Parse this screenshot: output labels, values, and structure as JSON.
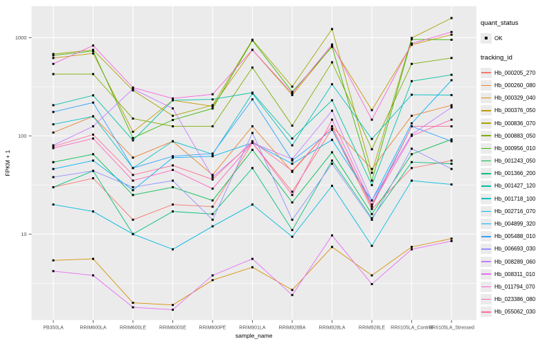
{
  "figure": {
    "background": "#ffffff",
    "panel_bg": "#ebebeb",
    "grid_color": "#ffffff",
    "tick_label_color": "#4d4d4d",
    "axis_title_color": "#000000",
    "point_color": "#000000"
  },
  "chart_data": {
    "type": "line",
    "xlabel": "sample_name",
    "ylabel": "FPKM + 1",
    "y_scale": "log10",
    "y_ticks": [
      10,
      100,
      1000
    ],
    "y_minor_ticks": [
      3.162,
      31.62,
      316.2
    ],
    "ylim": [
      1.35,
      2100
    ],
    "grid": "on",
    "legend_position": "right",
    "point_shape": "solid-square",
    "categories": [
      "PB350LA",
      "RRIM600LA",
      "RRIM600LE",
      "RRIM600SE",
      "RRIM600PE",
      "RRIM901LA",
      "RRIM928BA",
      "RRIM928LA",
      "RRIM928LE",
      "RRII105LA_Control",
      "RRII105LA_Stressed"
    ],
    "legend": {
      "quant_status_title": "quant_status",
      "ok_label": "OK",
      "tracking_title": "tracking_id"
    },
    "series": [
      {
        "name": "Hb_000205_270",
        "color": "#F8766D",
        "values": [
          30,
          37,
          14,
          20,
          19,
          85,
          27,
          118,
          18,
          47,
          56
        ]
      },
      {
        "name": "Hb_000260_080",
        "color": "#EA8331",
        "values": [
          108,
          158,
          60,
          88,
          40,
          125,
          43,
          125,
          46,
          160,
          205
        ]
      },
      {
        "name": "Hb_000329_040",
        "color": "#D89000",
        "values": [
          5.4,
          5.6,
          2.0,
          1.9,
          3.4,
          4.6,
          2.7,
          7.4,
          3.8,
          7.4,
          9.0
        ]
      },
      {
        "name": "Hb_000376_050",
        "color": "#C09B00",
        "values": [
          620,
          690,
          110,
          230,
          200,
          750,
          260,
          820,
          183,
          845,
          1070
        ]
      },
      {
        "name": "Hb_000836_070",
        "color": "#A3A500",
        "values": [
          680,
          750,
          290,
          160,
          205,
          950,
          317,
          1220,
          42,
          990,
          1580
        ]
      },
      {
        "name": "Hb_000883_050",
        "color": "#7CAE00",
        "values": [
          425,
          425,
          150,
          125,
          125,
          495,
          127,
          560,
          73,
          540,
          620
        ]
      },
      {
        "name": "Hb_000956_010",
        "color": "#39B600",
        "values": [
          660,
          730,
          95,
          145,
          190,
          935,
          280,
          805,
          35,
          960,
          950
        ]
      },
      {
        "name": "Hb_001243_050",
        "color": "#00BB4E",
        "values": [
          54,
          65,
          25,
          30,
          22,
          72,
          21,
          68,
          16,
          65,
          92
        ]
      },
      {
        "name": "Hb_001366_200",
        "color": "#00BF7D",
        "values": [
          30,
          44,
          10,
          17,
          16,
          47,
          11,
          56,
          14.5,
          54,
          52
        ]
      },
      {
        "name": "Hb_001427_120",
        "color": "#00C1A3",
        "values": [
          205,
          258,
          90,
          230,
          235,
          275,
          94,
          230,
          31.5,
          360,
          418
        ]
      },
      {
        "name": "Hb_001718_100",
        "color": "#00BFC4",
        "values": [
          131,
          158,
          47,
          88,
          65,
          270,
          80,
          335,
          93,
          262,
          260
        ]
      },
      {
        "name": "Hb_002716_070",
        "color": "#00BAE0",
        "values": [
          20,
          17,
          10,
          7,
          12,
          20,
          9.4,
          31,
          7.6,
          35,
          32
        ]
      },
      {
        "name": "Hb_004899_320",
        "color": "#00B0F6",
        "values": [
          46,
          56,
          28,
          60,
          62,
          85,
          52,
          91,
          22,
          134,
          368
        ]
      },
      {
        "name": "Hb_005488_010",
        "color": "#35A2FF",
        "values": [
          175,
          218,
          47,
          62,
          66,
          235,
          56,
          115,
          20,
          125,
          88
        ]
      },
      {
        "name": "Hb_006693_030",
        "color": "#9590FF",
        "values": [
          38,
          44,
          30,
          35,
          14,
          107,
          14,
          52,
          14,
          74,
          46
        ]
      },
      {
        "name": "Hb_008289_060",
        "color": "#C77CFF",
        "values": [
          80,
          125,
          300,
          190,
          38,
          85,
          58,
          180,
          22,
          103,
          195
        ]
      },
      {
        "name": "Hb_008311_010",
        "color": "#E76BF3",
        "values": [
          4.2,
          3.8,
          1.8,
          1.7,
          3.8,
          5.6,
          2.4,
          9.7,
          3.1,
          7.0,
          8.5
        ]
      },
      {
        "name": "Hb_011794_070",
        "color": "#FA62DB",
        "values": [
          540,
          830,
          310,
          240,
          265,
          750,
          270,
          850,
          146,
          870,
          1140
        ]
      },
      {
        "name": "Hb_023386_080",
        "color": "#FF62BC",
        "values": [
          75,
          94,
          35,
          45,
          29,
          85,
          25,
          146,
          20,
          100,
          146
        ]
      },
      {
        "name": "Hb_055062_030",
        "color": "#FF6A98",
        "values": [
          78,
          103,
          40,
          50,
          36,
          88,
          44,
          125,
          19,
          125,
          125
        ]
      }
    ]
  }
}
